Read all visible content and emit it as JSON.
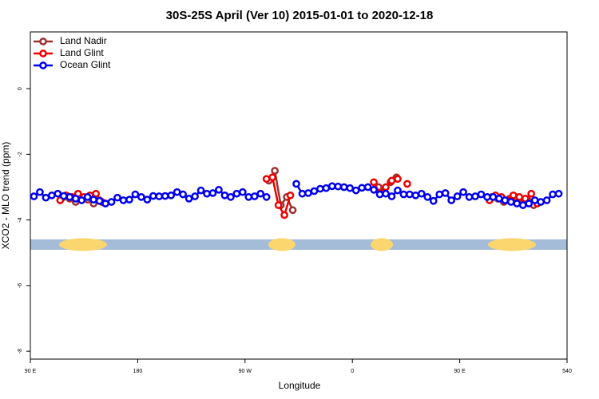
{
  "chart_data": {
    "type": "line",
    "title": "30S-25S April (Ver 10)   2015-01-01 to 2020-12-18",
    "x_label": "Longitude",
    "y_label": "XCO2 - MLO trend (ppm)",
    "xlim": [
      90,
      540
    ],
    "ylim": [
      -8.24,
      1.73
    ],
    "xticks": [
      {
        "value": 90,
        "label": "90 E"
      },
      180,
      {
        "value": 270,
        "label": "90 W"
      },
      {
        "value": 360,
        "label": "0"
      },
      {
        "value": 450,
        "label": "90 E"
      },
      540
    ],
    "yticks": [
      0,
      -2,
      -4,
      -6,
      -8
    ],
    "legend": "top-left",
    "series": [
      {
        "name": "Land Nadir",
        "color": "#a03030",
        "x": [
          118,
          123,
          128,
          133,
          138,
          143,
          148,
          153,
          220,
          290,
          295,
          300,
          305,
          310,
          340,
          382,
          387,
          392,
          397,
          440,
          477,
          482,
          487,
          492,
          497,
          502,
          507,
          512
        ],
        "values": [
          -3.3,
          -3.35,
          -3.45,
          -3.35,
          -3.38,
          -3.5,
          -3.4,
          -3.5,
          null,
          -2.8,
          -2.5,
          -3.55,
          -3.3,
          -3.7,
          null,
          -3.0,
          -3.15,
          -2.85,
          -2.7,
          null,
          -3.3,
          -3.35,
          -3.45,
          -3.35,
          -3.3,
          -3.5,
          -3.4,
          -3.55
        ]
      },
      {
        "name": "Land Glint",
        "color": "#ee0000",
        "x": [
          115,
          120,
          125,
          130,
          135,
          140,
          145,
          150,
          220,
          288,
          293,
          298,
          303,
          308,
          340,
          378,
          383,
          388,
          393,
          398,
          402,
          406,
          440,
          475,
          480,
          485,
          490,
          495,
          500,
          505,
          510,
          515
        ],
        "values": [
          -3.4,
          -3.25,
          -3.3,
          -3.2,
          -3.3,
          -3.25,
          -3.2,
          -3.45,
          null,
          -2.75,
          -2.7,
          -3.55,
          -3.85,
          -3.25,
          null,
          -2.85,
          -3.2,
          -3.0,
          -2.8,
          -2.75,
          null,
          -2.9,
          null,
          -3.4,
          -3.25,
          -3.3,
          -3.4,
          -3.25,
          -3.3,
          -3.35,
          -3.2,
          -3.5
        ]
      },
      {
        "name": "Ocean Glint",
        "color": "#0000ee",
        "x": [
          93,
          98,
          103,
          108,
          113,
          118,
          123,
          128,
          133,
          138,
          143,
          148,
          153,
          158,
          163,
          168,
          173,
          178,
          183,
          188,
          193,
          198,
          203,
          208,
          213,
          218,
          223,
          228,
          233,
          238,
          243,
          248,
          253,
          258,
          263,
          268,
          273,
          278,
          283,
          288,
          300,
          313,
          318,
          323,
          328,
          333,
          338,
          343,
          348,
          353,
          358,
          363,
          368,
          373,
          378,
          383,
          388,
          393,
          398,
          403,
          408,
          413,
          418,
          423,
          428,
          433,
          438,
          443,
          448,
          453,
          458,
          463,
          468,
          473,
          478,
          483,
          488,
          493,
          498,
          503,
          508,
          513,
          518,
          523,
          528,
          533
        ],
        "values": [
          -3.28,
          -3.15,
          -3.32,
          -3.25,
          -3.2,
          -3.27,
          -3.3,
          -3.35,
          -3.4,
          -3.3,
          -3.38,
          -3.42,
          -3.5,
          -3.45,
          -3.32,
          -3.4,
          -3.38,
          -3.22,
          -3.3,
          -3.38,
          -3.27,
          -3.28,
          -3.27,
          -3.25,
          -3.15,
          -3.22,
          -3.35,
          -3.28,
          -3.1,
          -3.2,
          -3.18,
          -3.08,
          -3.25,
          -3.3,
          -3.2,
          -3.15,
          -3.3,
          -3.28,
          -3.2,
          -3.3,
          null,
          -2.9,
          -3.2,
          -3.18,
          -3.12,
          -3.05,
          -3.03,
          -2.97,
          -2.98,
          -3.0,
          -3.03,
          -3.1,
          -3.02,
          -3.0,
          -3.08,
          -3.22,
          -3.2,
          -3.28,
          -3.1,
          -3.22,
          -3.22,
          -3.25,
          -3.2,
          -3.3,
          -3.42,
          -3.22,
          -3.18,
          -3.4,
          -3.28,
          -3.15,
          -3.3,
          -3.28,
          -3.22,
          -3.3,
          -3.3,
          -3.35,
          -3.4,
          -3.45,
          -3.5,
          -3.55,
          -3.5,
          -3.4,
          -3.45,
          -3.4,
          -3.22,
          -3.2
        ]
      }
    ]
  }
}
